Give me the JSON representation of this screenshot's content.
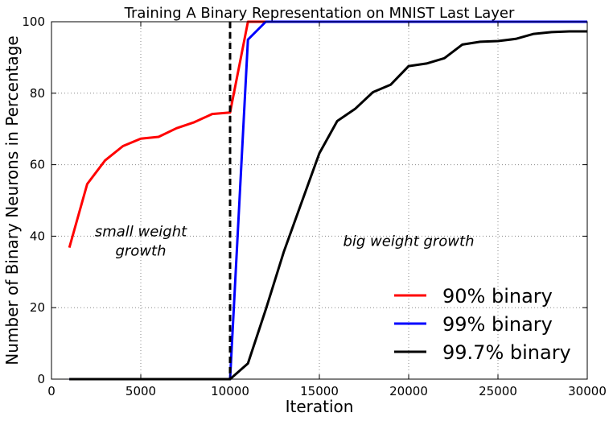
{
  "chart_data": {
    "type": "line",
    "title": "Training A Binary Representation on MNIST Last Layer",
    "xlabel": "Iteration",
    "ylabel": "Number of Binary Neurons in Percentage",
    "xlim": [
      0,
      30000
    ],
    "ylim": [
      0,
      100
    ],
    "xticks": [
      0,
      5000,
      10000,
      15000,
      20000,
      25000,
      30000
    ],
    "yticks": [
      0,
      20,
      40,
      60,
      80,
      100
    ],
    "grid": true,
    "legend_position": "lower-right",
    "vline": {
      "x": 10000,
      "style": "dashed",
      "color": "#000000"
    },
    "annotations": [
      {
        "text": "small weight growth",
        "lines": [
          "small weight",
          "growth"
        ],
        "x": 5000,
        "y": 40
      },
      {
        "text": "big weight growth",
        "lines": [
          "big weight growth"
        ],
        "x": 20000,
        "y": 40
      }
    ],
    "series": [
      {
        "name": "90% binary",
        "color": "#ff0000",
        "x": [
          1000,
          2000,
          3000,
          4000,
          5000,
          6000,
          7000,
          8000,
          9000,
          10000,
          11000,
          12000,
          13000,
          14000,
          15000,
          16000,
          17000,
          18000,
          19000,
          20000,
          21000,
          22000,
          23000,
          24000,
          25000,
          26000,
          27000,
          28000,
          29000,
          30000
        ],
        "y": [
          36.8,
          54.6,
          61.2,
          65.2,
          67.3,
          67.8,
          70.2,
          71.9,
          74.2,
          74.6,
          100,
          100,
          100,
          100,
          100,
          100,
          100,
          100,
          100,
          100,
          100,
          100,
          100,
          100,
          100,
          100,
          100,
          100,
          100,
          100
        ]
      },
      {
        "name": "99% binary",
        "color": "#0000ff",
        "x": [
          1000,
          2000,
          3000,
          4000,
          5000,
          6000,
          7000,
          8000,
          9000,
          10000,
          11000,
          12000,
          13000,
          14000,
          15000,
          16000,
          17000,
          18000,
          19000,
          20000,
          21000,
          22000,
          23000,
          24000,
          25000,
          26000,
          27000,
          28000,
          29000,
          30000
        ],
        "y": [
          0,
          0,
          0,
          0,
          0,
          0,
          0,
          0,
          0,
          0,
          95,
          100,
          100,
          100,
          100,
          100,
          100,
          100,
          100,
          100,
          100,
          100,
          100,
          100,
          100,
          100,
          100,
          100,
          100,
          100
        ]
      },
      {
        "name": "99.7% binary",
        "color": "#000000",
        "x": [
          1000,
          2000,
          3000,
          4000,
          5000,
          6000,
          7000,
          8000,
          9000,
          10000,
          11000,
          12000,
          13000,
          14000,
          15000,
          16000,
          17000,
          18000,
          19000,
          20000,
          21000,
          22000,
          23000,
          24000,
          25000,
          26000,
          27000,
          28000,
          29000,
          30000
        ],
        "y": [
          0,
          0,
          0,
          0,
          0,
          0,
          0,
          0,
          0,
          0,
          4.4,
          19.5,
          35.5,
          49.4,
          63.2,
          72.2,
          75.6,
          80.3,
          82.4,
          87.6,
          88.3,
          89.8,
          93.6,
          94.4,
          94.6,
          95.2,
          96.6,
          97.1,
          97.3,
          97.3
        ]
      }
    ]
  }
}
